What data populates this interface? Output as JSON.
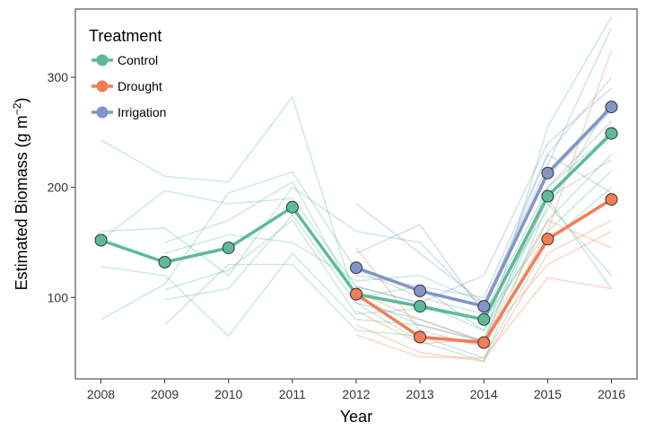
{
  "chart_data": {
    "type": "line",
    "xlabel": "Year",
    "ylabel": "Estimated Biomass (g m",
    "ylabel_sup": "−2",
    "ylabel_close": ")",
    "xlim": [
      2007.6,
      2016.4
    ],
    "ylim": [
      26,
      362
    ],
    "x_ticks": [
      2008,
      2009,
      2010,
      2011,
      2012,
      2013,
      2014,
      2015,
      2016
    ],
    "y_ticks": [
      100,
      200,
      300
    ],
    "grid": false,
    "legend": {
      "title": "Treatment",
      "position": "top-left",
      "entries": [
        "Control",
        "Drought",
        "Irrigation"
      ]
    },
    "colors": {
      "Control": "#5dba99",
      "Drought": "#f27d56",
      "Irrigation": "#8195c6"
    },
    "series": [
      {
        "name": "Control",
        "x": [
          2008,
          2009,
          2010,
          2011,
          2012,
          2013,
          2014,
          2015,
          2016
        ],
        "values": [
          152,
          132,
          145,
          182,
          103,
          92,
          80,
          192,
          249
        ]
      },
      {
        "name": "Drought",
        "x": [
          2012,
          2013,
          2014,
          2015,
          2016
        ],
        "values": [
          103,
          64,
          59,
          153,
          189
        ]
      },
      {
        "name": "Irrigation",
        "x": [
          2012,
          2013,
          2014,
          2015,
          2016
        ],
        "values": [
          127,
          106,
          92,
          213,
          273
        ]
      }
    ],
    "background_lines": [
      {
        "group": "Control",
        "x": [
          2008,
          2009,
          2010,
          2011,
          2012,
          2013,
          2014,
          2015,
          2016
        ],
        "values": [
          243,
          210,
          205,
          282,
          95,
          80,
          60,
          255,
          355
        ]
      },
      {
        "group": "Control",
        "x": [
          2008,
          2009,
          2010,
          2011,
          2012,
          2013,
          2014,
          2015,
          2016
        ],
        "values": [
          160,
          163,
          120,
          200,
          160,
          150,
          90,
          230,
          300
        ]
      },
      {
        "group": "Control",
        "x": [
          2008,
          2009,
          2010,
          2011,
          2012,
          2013,
          2014,
          2015,
          2016
        ],
        "values": [
          128,
          120,
          65,
          140,
          80,
          75,
          60,
          200,
          250
        ]
      },
      {
        "group": "Control",
        "x": [
          2008,
          2009,
          2010,
          2011,
          2012,
          2013,
          2014,
          2015,
          2016
        ],
        "values": [
          80,
          112,
          195,
          214,
          125,
          100,
          85,
          180,
          280
        ]
      },
      {
        "group": "Control",
        "x": [
          2008,
          2009,
          2010,
          2011,
          2012,
          2013,
          2014,
          2015,
          2016
        ],
        "values": [
          152,
          197,
          185,
          190,
          110,
          95,
          70,
          170,
          230
        ]
      },
      {
        "group": "Control",
        "x": [
          2009,
          2010,
          2011,
          2012,
          2013,
          2014,
          2015,
          2016
        ],
        "values": [
          75,
          130,
          130,
          70,
          65,
          45,
          150,
          200
        ]
      },
      {
        "group": "Control",
        "x": [
          2009,
          2010,
          2011,
          2012,
          2013,
          2014,
          2015,
          2016
        ],
        "values": [
          150,
          170,
          205,
          100,
          110,
          70,
          190,
          108
        ]
      },
      {
        "group": "Control",
        "x": [
          2009,
          2010,
          2011,
          2012,
          2013,
          2014,
          2015,
          2016
        ],
        "values": [
          107,
          125,
          170,
          85,
          90,
          80,
          160,
          215
        ]
      },
      {
        "group": "Control",
        "x": [
          2009,
          2010,
          2011,
          2012,
          2013,
          2014,
          2015,
          2016
        ],
        "values": [
          140,
          157,
          150,
          115,
          120,
          95,
          210,
          270
        ]
      },
      {
        "group": "Control",
        "x": [
          2009,
          2010,
          2011,
          2012,
          2013,
          2014,
          2015,
          2016
        ],
        "values": [
          98,
          108,
          175,
          95,
          60,
          42,
          185,
          120
        ]
      },
      {
        "group": "Drought",
        "x": [
          2012,
          2013,
          2014,
          2015,
          2016
        ],
        "values": [
          145,
          70,
          55,
          160,
          325
        ]
      },
      {
        "group": "Drought",
        "x": [
          2012,
          2013,
          2014,
          2015,
          2016
        ],
        "values": [
          75,
          50,
          42,
          140,
          170
        ]
      },
      {
        "group": "Drought",
        "x": [
          2012,
          2013,
          2014,
          2015,
          2016
        ],
        "values": [
          105,
          80,
          60,
          170,
          145
        ]
      },
      {
        "group": "Drought",
        "x": [
          2012,
          2013,
          2014,
          2015,
          2016
        ],
        "values": [
          66,
          46,
          45,
          118,
          108
        ]
      },
      {
        "group": "Drought",
        "x": [
          2012,
          2013,
          2014,
          2015,
          2016
        ],
        "values": [
          88,
          58,
          62,
          130,
          160
        ]
      },
      {
        "group": "Irrigation",
        "x": [
          2012,
          2013,
          2014,
          2015,
          2016
        ],
        "values": [
          185,
          140,
          95,
          220,
          345
        ]
      },
      {
        "group": "Irrigation",
        "x": [
          2012,
          2013,
          2014,
          2015,
          2016
        ],
        "values": [
          140,
          166,
          85,
          200,
          260
        ]
      },
      {
        "group": "Irrigation",
        "x": [
          2012,
          2013,
          2014,
          2015,
          2016
        ],
        "values": [
          110,
          95,
          120,
          240,
          290
        ]
      },
      {
        "group": "Irrigation",
        "x": [
          2012,
          2013,
          2014,
          2015,
          2016
        ],
        "values": [
          100,
          75,
          60,
          190,
          225
        ]
      },
      {
        "group": "Irrigation",
        "x": [
          2012,
          2013,
          2014,
          2015,
          2016
        ],
        "values": [
          120,
          110,
          100,
          230,
          195
        ]
      }
    ]
  }
}
